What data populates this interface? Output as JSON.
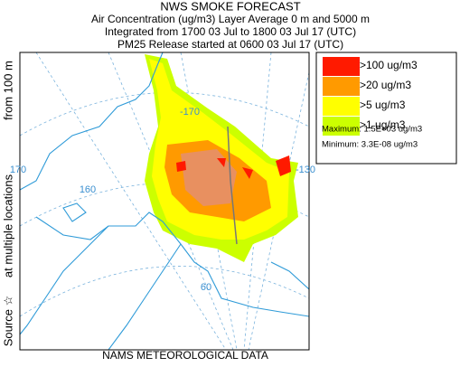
{
  "header": {
    "title": "NWS SMOKE FORECAST",
    "lines": [
      "Air Concentration (ug/m3) Layer Average    0 m and  5000 m",
      "Integrated from 1700 03 Jul to 1800 03 Jul 17 (UTC)",
      "PM25 Release started at 0600 03 Jul 17 (UTC)"
    ]
  },
  "side_labels": [
    "Source ☆",
    "at multiple locations",
    "from   100 m"
  ],
  "footer": "NAMS METEOROLOGICAL DATA",
  "legend": {
    "items": [
      {
        "label": ">100 ug/m3",
        "color": "#ff1a00"
      },
      {
        "label": ">20 ug/m3",
        "color": "#ff9a00"
      },
      {
        "label": ">5 ug/m3",
        "color": "#ffff00"
      },
      {
        "label": ">1 ug/m3",
        "color": "#ccff00"
      }
    ],
    "maximum": "Maximum: 1.5E+03 ug/m3",
    "minimum": "Minimum: 3.3E-08 ug/m3"
  },
  "map": {
    "labels": [
      "170",
      "160",
      "-170",
      "-130",
      "60"
    ]
  }
}
